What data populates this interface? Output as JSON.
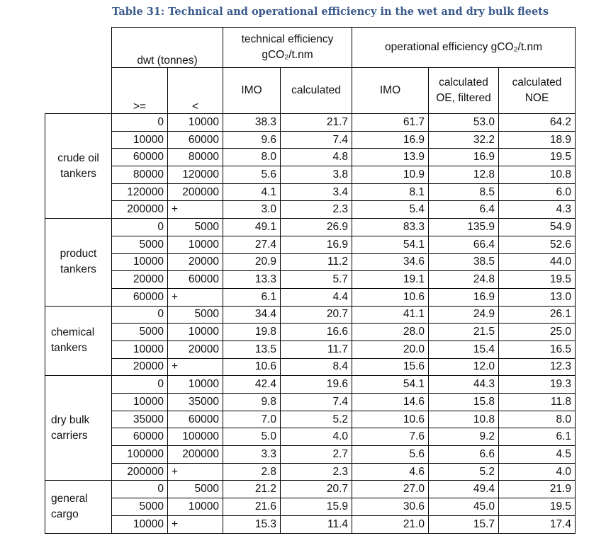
{
  "caption": "Table 31: Technical and operational efficiency in the wet and dry bulk fleets",
  "header": {
    "dwt": "dwt (tonnes)",
    "ge": ">=",
    "lt": "<",
    "technical": [
      "technical efficiency",
      "gCO₂/t.nm"
    ],
    "operational": "operational efficiency gCO₂/t.nm",
    "imo": "IMO",
    "calculated": "calculated",
    "calc_oe": [
      "calculated",
      "OE, filtered"
    ],
    "calc_noe": [
      "calculated",
      "NOE"
    ]
  },
  "groups": [
    {
      "name": [
        "crude oil",
        "tankers"
      ],
      "rows": [
        [
          "0",
          "10000",
          "38.3",
          "21.7",
          "61.7",
          "53.0",
          "64.2"
        ],
        [
          "10000",
          "60000",
          "9.6",
          "7.4",
          "16.9",
          "32.2",
          "18.9"
        ],
        [
          "60000",
          "80000",
          "8.0",
          "4.8",
          "13.9",
          "16.9",
          "19.5"
        ],
        [
          "80000",
          "120000",
          "5.6",
          "3.8",
          "10.9",
          "12.8",
          "10.8"
        ],
        [
          "120000",
          "200000",
          "4.1",
          "3.4",
          "8.1",
          "8.5",
          "6.0"
        ],
        [
          "200000",
          "+",
          "3.0",
          "2.3",
          "5.4",
          "6.4",
          "4.3"
        ]
      ]
    },
    {
      "name": [
        "product",
        "tankers"
      ],
      "rows": [
        [
          "0",
          "5000",
          "49.1",
          "26.9",
          "83.3",
          "135.9",
          "54.9"
        ],
        [
          "5000",
          "10000",
          "27.4",
          "16.9",
          "54.1",
          "66.4",
          "52.6"
        ],
        [
          "10000",
          "20000",
          "20.9",
          "11.2",
          "34.6",
          "38.5",
          "44.0"
        ],
        [
          "20000",
          "60000",
          "13.3",
          "5.7",
          "19.1",
          "24.8",
          "19.5"
        ],
        [
          "60000",
          "+",
          "6.1",
          "4.4",
          "10.6",
          "16.9",
          "13.0"
        ]
      ]
    },
    {
      "name": [
        "chemical",
        "tankers"
      ],
      "rows": [
        [
          "0",
          "5000",
          "34.4",
          "20.7",
          "41.1",
          "24.9",
          "26.1"
        ],
        [
          "5000",
          "10000",
          "19.8",
          "16.6",
          "28.0",
          "21.5",
          "25.0"
        ],
        [
          "10000",
          "20000",
          "13.5",
          "11.7",
          "20.0",
          "15.4",
          "16.5"
        ],
        [
          "20000",
          "+",
          "10.6",
          "8.4",
          "15.6",
          "12.0",
          "12.3"
        ]
      ]
    },
    {
      "name": [
        "dry bulk",
        "carriers"
      ],
      "rows": [
        [
          "0",
          "10000",
          "42.4",
          "19.6",
          "54.1",
          "44.3",
          "19.3"
        ],
        [
          "10000",
          "35000",
          "9.8",
          "7.4",
          "14.6",
          "15.8",
          "11.8"
        ],
        [
          "35000",
          "60000",
          "7.0",
          "5.2",
          "10.6",
          "10.8",
          "8.0"
        ],
        [
          "60000",
          "100000",
          "5.0",
          "4.0",
          "7.6",
          "9.2",
          "6.1"
        ],
        [
          "100000",
          "200000",
          "3.3",
          "2.7",
          "5.6",
          "6.6",
          "4.5"
        ],
        [
          "200000",
          "+",
          "2.8",
          "2.3",
          "4.6",
          "5.2",
          "4.0"
        ]
      ]
    },
    {
      "name": [
        "general",
        "cargo"
      ],
      "rows": [
        [
          "0",
          "5000",
          "21.2",
          "20.7",
          "27.0",
          "49.4",
          "21.9"
        ],
        [
          "5000",
          "10000",
          "21.6",
          "15.9",
          "30.6",
          "45.0",
          "19.5"
        ],
        [
          "10000",
          "+",
          "15.3",
          "11.4",
          "21.0",
          "15.7",
          "17.4"
        ]
      ]
    }
  ]
}
